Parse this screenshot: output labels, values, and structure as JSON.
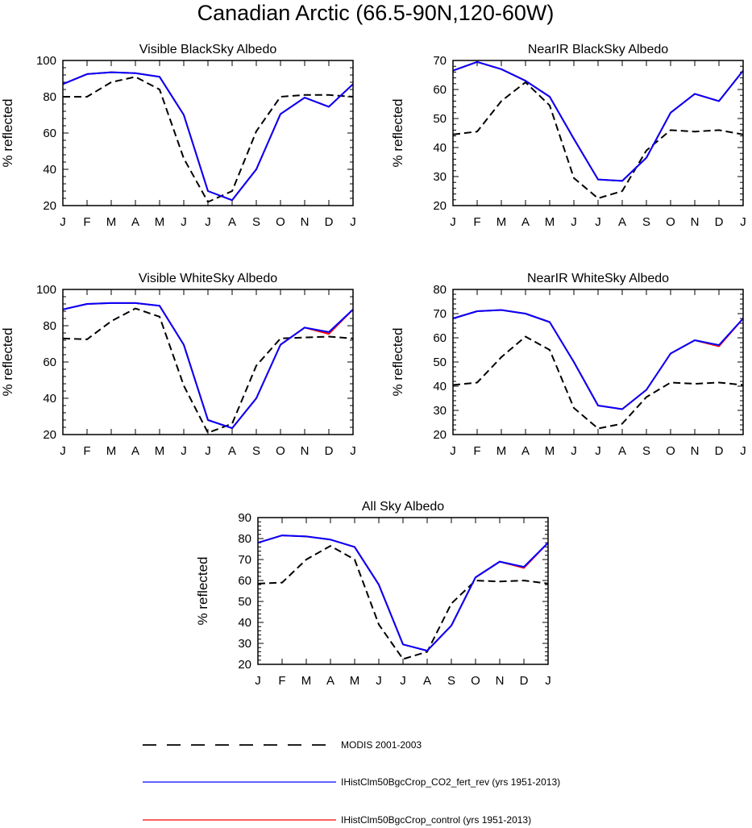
{
  "figure": {
    "title": "Canadian Arctic (66.5-90N,120-60W)"
  },
  "legend": {
    "items": [
      {
        "label": "MODIS 2001-2003",
        "color": "#000000",
        "dashed": true
      },
      {
        "label": "IHistClm50BgcCrop_CO2_fert_rev (yrs 1951-2013)",
        "color": "#0000ff",
        "dashed": false
      },
      {
        "label": "IHistClm50BgcCrop_control (yrs 1951-2013)",
        "color": "#ff0000",
        "dashed": false
      }
    ]
  },
  "chart_data": [
    {
      "type": "line",
      "title": "Visible BlackSky Albedo",
      "ylabel": "% reflected",
      "xlabel": "",
      "categories": [
        "J",
        "F",
        "M",
        "A",
        "M",
        "J",
        "J",
        "A",
        "S",
        "O",
        "N",
        "D",
        "J"
      ],
      "yticks": [
        20,
        40,
        60,
        80,
        100
      ],
      "ylim": [
        20,
        100
      ],
      "series": [
        {
          "name": "MODIS 2001-2003",
          "color": "#000000",
          "dashed": true,
          "values": [
            80,
            80,
            88,
            91,
            84,
            46,
            22,
            28,
            61,
            80,
            81,
            81,
            80
          ]
        },
        {
          "name": "IHistClm50BgcCrop_control (yrs 1951-2013)",
          "color": "#ff0000",
          "dashed": false,
          "values": [
            87,
            92.5,
            93.5,
            93,
            91,
            70,
            28,
            23,
            40,
            70.5,
            79.5,
            74.5,
            87
          ]
        },
        {
          "name": "IHistClm50BgcCrop_CO2_fert_rev (yrs 1951-2013)",
          "color": "#0000ff",
          "dashed": false,
          "values": [
            87,
            92.5,
            93.5,
            93,
            91,
            70,
            28,
            23,
            40,
            70.5,
            79.5,
            74.5,
            87
          ]
        }
      ]
    },
    {
      "type": "line",
      "title": "NearIR BlackSky Albedo",
      "ylabel": "% reflected",
      "xlabel": "",
      "categories": [
        "J",
        "F",
        "M",
        "A",
        "M",
        "J",
        "J",
        "A",
        "S",
        "O",
        "N",
        "D",
        "J"
      ],
      "yticks": [
        20,
        30,
        40,
        50,
        60,
        70
      ],
      "ylim": [
        20,
        70
      ],
      "series": [
        {
          "name": "MODIS 2001-2003",
          "color": "#000000",
          "dashed": true,
          "values": [
            44.5,
            45.5,
            56,
            62.5,
            54.5,
            29.5,
            22.5,
            25,
            39,
            46,
            45.5,
            46,
            44.5
          ]
        },
        {
          "name": "IHistClm50BgcCrop_control (yrs 1951-2013)",
          "color": "#ff0000",
          "dashed": false,
          "values": [
            66.5,
            69.5,
            67,
            63,
            57.5,
            43,
            29,
            28.5,
            36.5,
            52,
            58.5,
            56,
            66.5
          ]
        },
        {
          "name": "IHistClm50BgcCrop_CO2_fert_rev (yrs 1951-2013)",
          "color": "#0000ff",
          "dashed": false,
          "values": [
            66.5,
            69.5,
            67,
            63,
            57.5,
            43,
            29,
            28.5,
            36.5,
            52,
            58.5,
            56,
            66.5
          ]
        }
      ]
    },
    {
      "type": "line",
      "title": "Visible WhiteSky Albedo",
      "ylabel": "% reflected",
      "xlabel": "",
      "categories": [
        "J",
        "F",
        "M",
        "A",
        "M",
        "J",
        "J",
        "A",
        "S",
        "O",
        "N",
        "D",
        "J"
      ],
      "yticks": [
        20,
        40,
        60,
        80,
        100
      ],
      "ylim": [
        20,
        100
      ],
      "series": [
        {
          "name": "MODIS 2001-2003",
          "color": "#000000",
          "dashed": true,
          "values": [
            73,
            72.5,
            82.5,
            89.5,
            85,
            47,
            21,
            26,
            58,
            73,
            73.5,
            74,
            73
          ]
        },
        {
          "name": "IHistClm50BgcCrop_control (yrs 1951-2013)",
          "color": "#ff0000",
          "dashed": false,
          "values": [
            89,
            92,
            92.5,
            92.5,
            91,
            69.5,
            28,
            23.5,
            40,
            69.5,
            79,
            75.5,
            89
          ]
        },
        {
          "name": "IHistClm50BgcCrop_CO2_fert_rev (yrs 1951-2013)",
          "color": "#0000ff",
          "dashed": false,
          "values": [
            89,
            92,
            92.5,
            92.5,
            91,
            69.5,
            28,
            23.5,
            40,
            69.5,
            79,
            76.5,
            89
          ]
        }
      ]
    },
    {
      "type": "line",
      "title": "NearIR WhiteSky Albedo",
      "ylabel": "% reflected",
      "xlabel": "",
      "categories": [
        "J",
        "F",
        "M",
        "A",
        "M",
        "J",
        "J",
        "A",
        "S",
        "O",
        "N",
        "D",
        "J"
      ],
      "yticks": [
        20,
        30,
        40,
        50,
        60,
        70,
        80
      ],
      "ylim": [
        20,
        80
      ],
      "series": [
        {
          "name": "MODIS 2001-2003",
          "color": "#000000",
          "dashed": true,
          "values": [
            40.5,
            41.5,
            52,
            60.5,
            55,
            31,
            22.5,
            24.5,
            35.5,
            41.5,
            41,
            41.5,
            40.5
          ]
        },
        {
          "name": "IHistClm50BgcCrop_control (yrs 1951-2013)",
          "color": "#ff0000",
          "dashed": false,
          "values": [
            68,
            71,
            71.5,
            70,
            66.5,
            50,
            32,
            30.5,
            38.5,
            53.5,
            59,
            56.5,
            68
          ]
        },
        {
          "name": "IHistClm50BgcCrop_CO2_fert_rev (yrs 1951-2013)",
          "color": "#0000ff",
          "dashed": false,
          "values": [
            68,
            71,
            71.5,
            70,
            66.5,
            50,
            32,
            30.5,
            38.5,
            53.5,
            59,
            57,
            68
          ]
        }
      ]
    },
    {
      "type": "line",
      "title": "All Sky Albedo",
      "ylabel": "% reflected",
      "xlabel": "",
      "categories": [
        "J",
        "F",
        "M",
        "A",
        "M",
        "J",
        "J",
        "A",
        "S",
        "O",
        "N",
        "D",
        "J"
      ],
      "yticks": [
        20,
        30,
        40,
        50,
        60,
        70,
        80,
        90
      ],
      "ylim": [
        20,
        90
      ],
      "series": [
        {
          "name": "MODIS 2001-2003",
          "color": "#000000",
          "dashed": true,
          "values": [
            58.5,
            59,
            70,
            76.5,
            70,
            39,
            22.5,
            26,
            49,
            60,
            59.5,
            60,
            58.5
          ]
        },
        {
          "name": "IHistClm50BgcCrop_control (yrs 1951-2013)",
          "color": "#ff0000",
          "dashed": false,
          "values": [
            78,
            81.5,
            81,
            79.5,
            76,
            58,
            29.5,
            26.5,
            38.5,
            61.5,
            69,
            66,
            78
          ]
        },
        {
          "name": "IHistClm50BgcCrop_CO2_fert_rev (yrs 1951-2013)",
          "color": "#0000ff",
          "dashed": false,
          "values": [
            78,
            81.5,
            81,
            79.5,
            76,
            58,
            29.5,
            26.5,
            38.5,
            61.5,
            69,
            66.5,
            78
          ]
        }
      ]
    }
  ]
}
